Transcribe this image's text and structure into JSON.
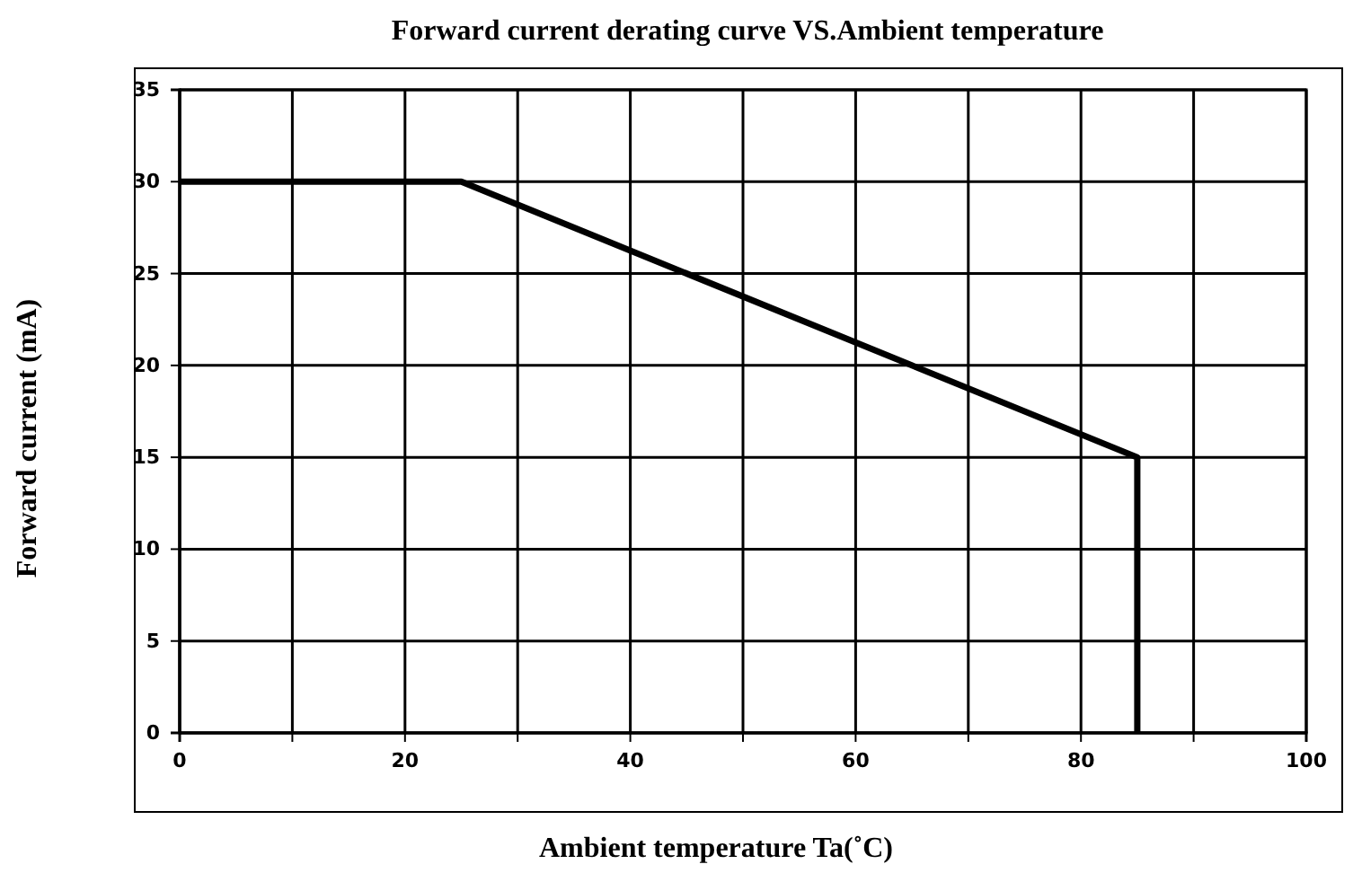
{
  "chart_data": {
    "type": "line",
    "title": "Forward current derating curve VS.Ambient temperature",
    "xlabel": "Ambient temperature Ta(˚C)",
    "ylabel": "Forward current (mA)",
    "x": [
      0,
      25,
      85,
      85
    ],
    "series": [
      {
        "color": "#000000",
        "values": [
          30,
          30,
          15,
          0
        ]
      }
    ],
    "xlim": [
      0,
      100
    ],
    "ylim": [
      0,
      35
    ],
    "xticks": [
      0,
      {
        "value": 10,
        "label": null
      },
      20,
      {
        "value": 30,
        "label": null
      },
      40,
      {
        "value": 50,
        "label": null
      },
      60,
      {
        "value": 70,
        "label": null
      },
      80,
      {
        "value": 90,
        "label": null
      },
      100
    ],
    "yticks": [
      0,
      5,
      10,
      15,
      20,
      25,
      30,
      35
    ],
    "grid": true,
    "marker": "none",
    "line_style": "solid"
  }
}
